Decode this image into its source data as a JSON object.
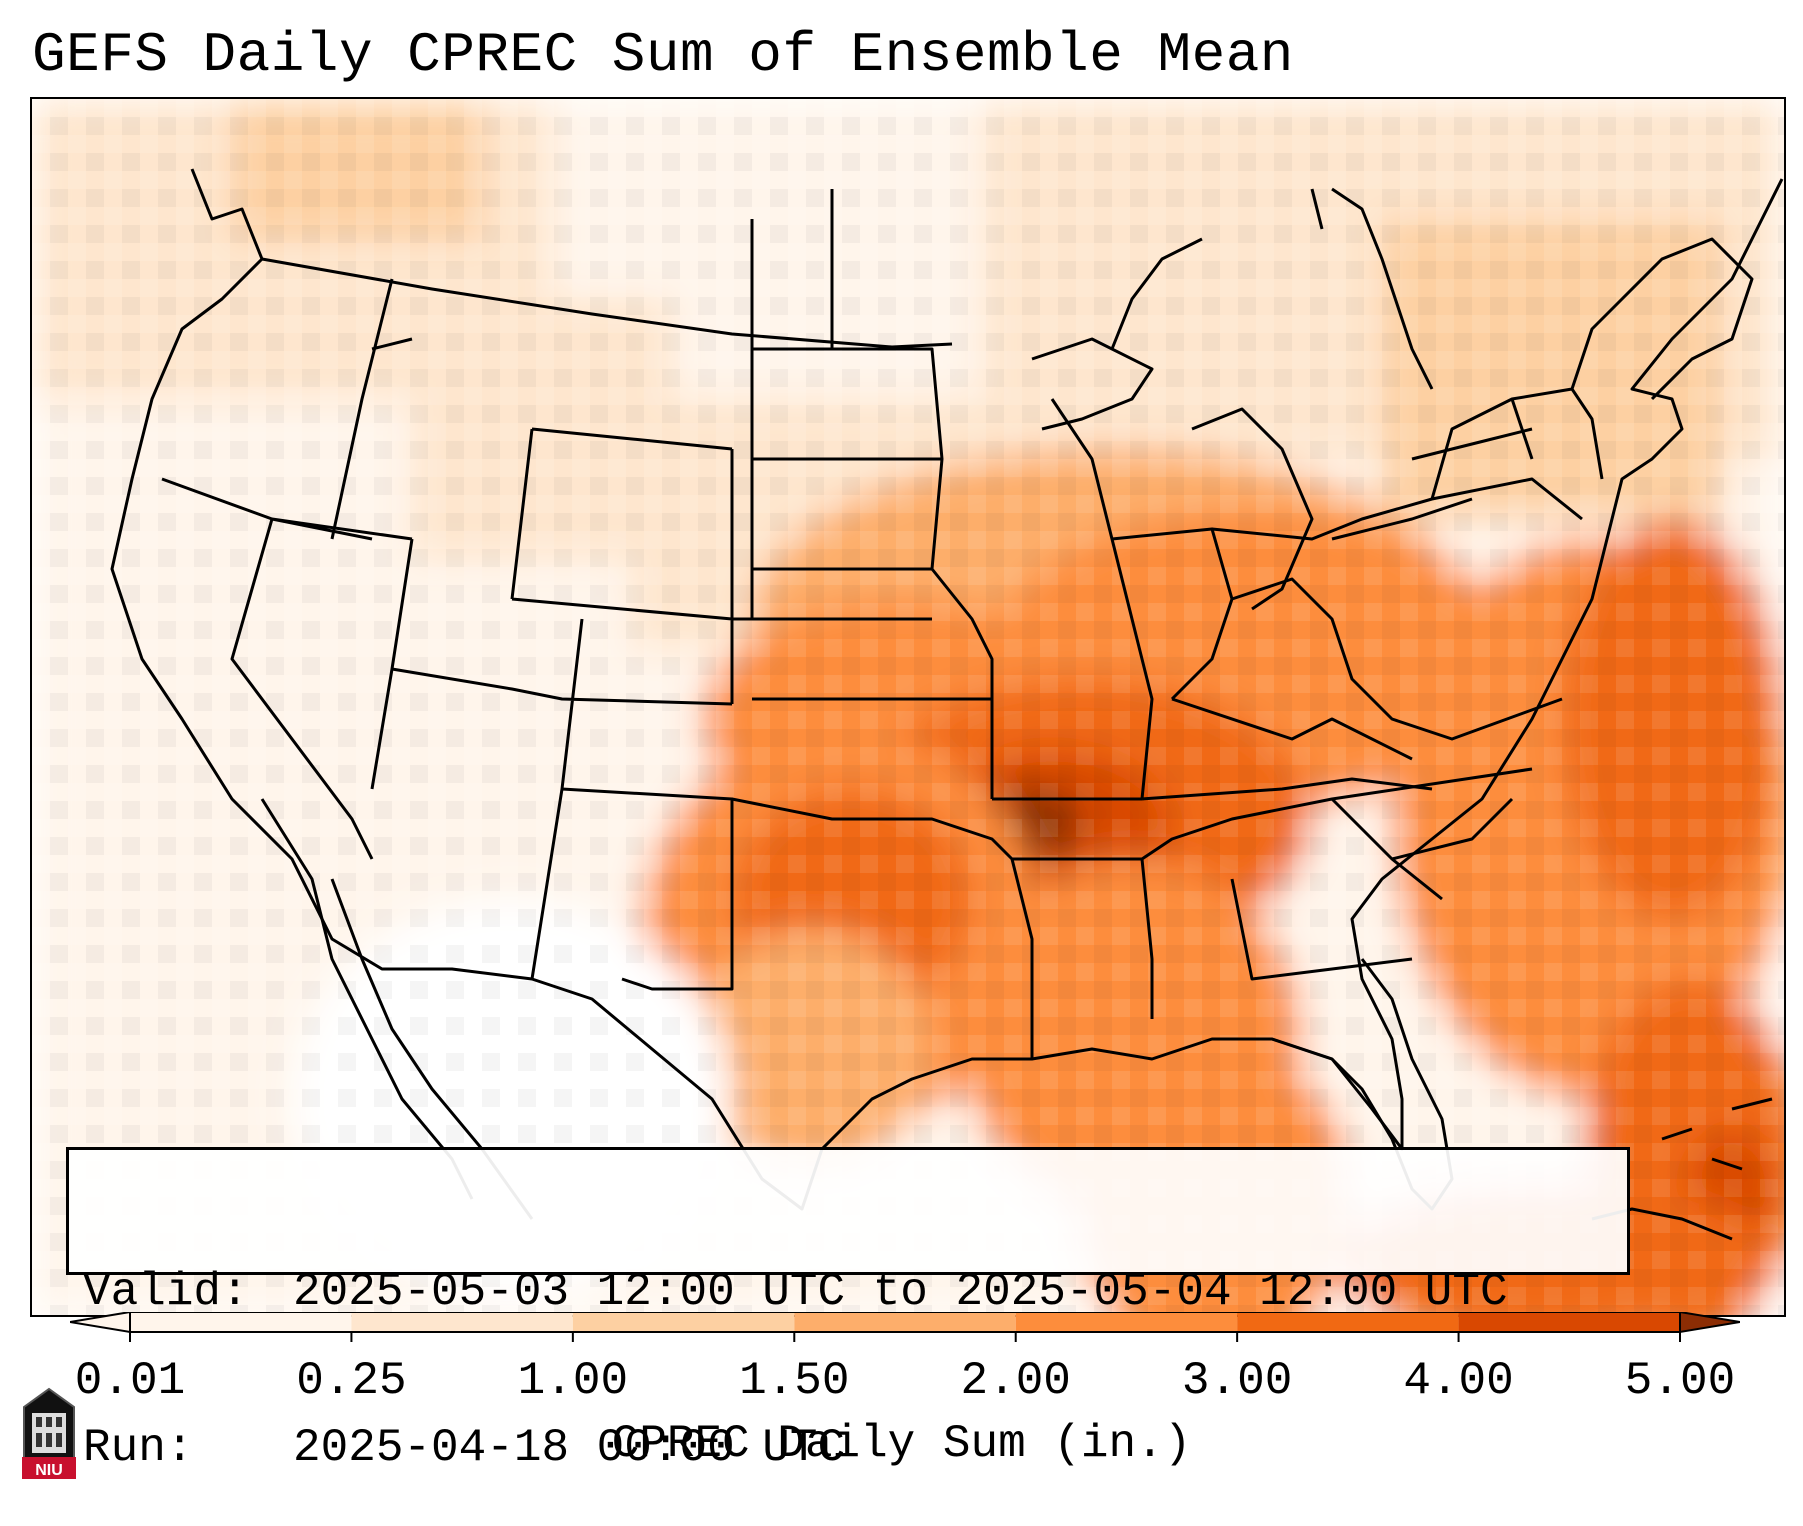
{
  "title": "GEFS Daily CPREC Sum of Ensemble Mean",
  "info": {
    "valid_key": "Valid:",
    "valid_value": "2025-05-03 12:00 UTC to 2025-05-04 12:00 UTC",
    "run_key": "Run:",
    "run_value": "2025-04-18 00:00 UTC"
  },
  "colorbar": {
    "title": "CPREC Daily Sum (in.)",
    "ticks": [
      "0.01",
      "0.25",
      "1.00",
      "1.50",
      "2.00",
      "3.00",
      "4.00",
      "5.00"
    ],
    "colors": [
      "#fff5eb",
      "#fee6ce",
      "#fdd0a2",
      "#fdae6b",
      "#fd8d3c",
      "#f16913",
      "#d94801",
      "#8c2d04"
    ],
    "extend": "both"
  },
  "logo_text": "NIU"
}
